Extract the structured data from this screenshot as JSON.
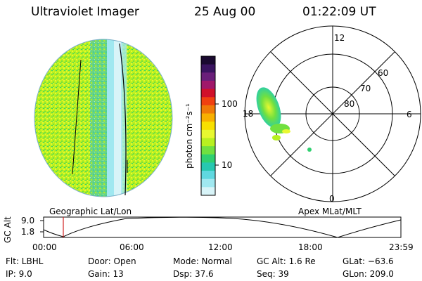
{
  "header": {
    "instrument": "Ultraviolet Imager",
    "date": "25 Aug 00",
    "time": "01:22:09 UT"
  },
  "colorbar": {
    "label": "photon cm⁻²s⁻¹",
    "ticks": [
      "100",
      "10"
    ],
    "colors": [
      "#1a0a30",
      "#3a1460",
      "#6a1f7a",
      "#a0186a",
      "#d0102a",
      "#f04010",
      "#f07a08",
      "#f8b000",
      "#f8e000",
      "#e8f830",
      "#b8f020",
      "#70e040",
      "#30d070",
      "#28c8b0",
      "#60d8e0",
      "#a0e8f0",
      "#d8f4f8"
    ]
  },
  "left_panel": {
    "caption": "Geographic Lat/Lon"
  },
  "polar_plot": {
    "caption": "Apex MLat/MLT",
    "mlt_labels": [
      "12",
      "18",
      "6",
      "0"
    ],
    "lat_labels": [
      "60",
      "70",
      "80"
    ]
  },
  "timeline": {
    "ylabel": "GC Alt",
    "y_ticks": [
      "9.0",
      "1.8"
    ],
    "x_ticks": [
      "00:00",
      "06:00",
      "12:00",
      "18:00",
      "23:59"
    ],
    "marker_time": "01:22",
    "marker_color": "#d02020"
  },
  "status": {
    "filter": "Flt: LBHL",
    "ip": "IP:  9.0",
    "door": "Door: Open",
    "gain": "Gain: 13",
    "mode": "Mode: Normal",
    "dsp": "Dsp:    37.6",
    "gc_alt": "GC Alt: 1.6 Re",
    "seq": "Seq: 39",
    "glat": "GLat: −63.6",
    "glon": "GLon: 209.0"
  }
}
